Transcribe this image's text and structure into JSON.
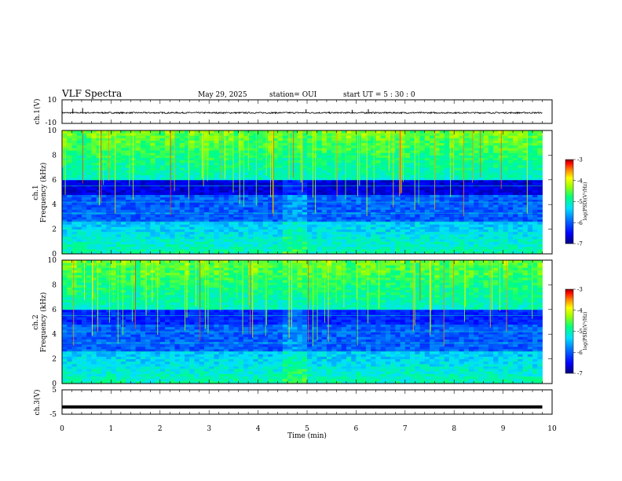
{
  "header": {
    "title": "VLF Spectra",
    "date": "May 29, 2025",
    "station": "station= OUI",
    "start": "start  UT =   5  : 30 : 0"
  },
  "chart_data": [
    {
      "type": "line",
      "panel": "ch1-waveform",
      "ylabel": "ch.1(V)",
      "ylim": [
        -10,
        10
      ],
      "yticks": [
        "10",
        "-10"
      ],
      "xlim": [
        0,
        10
      ],
      "baseline": -1,
      "noise_amplitude": 0.6,
      "spikes": [
        {
          "t": 0.22,
          "v": 2.5
        },
        {
          "t": 0.42,
          "v": 3.0
        },
        {
          "t": 4.98,
          "v": 2.0
        },
        {
          "t": 5.92,
          "v": 1.5
        },
        {
          "t": 6.25,
          "v": 2.0
        }
      ]
    },
    {
      "type": "heatmap",
      "panel": "ch1-spectrogram",
      "ylabel": "ch.1",
      "ylabel2": "Frequency (kHz)",
      "ylim": [
        0,
        10
      ],
      "yticks": [
        "0",
        "2",
        "4",
        "6",
        "8",
        "10"
      ],
      "xlim": [
        0,
        10
      ],
      "data_end_min": 9.8,
      "colorbar": {
        "label": "log(PSD)(V²/Hz)",
        "range": [
          -7,
          -3
        ],
        "ticks": [
          "-3",
          "-4",
          "-5",
          "-6",
          "-7"
        ]
      }
    },
    {
      "type": "heatmap",
      "panel": "ch2-spectrogram",
      "ylabel": "ch.2",
      "ylabel2": "Frequency (kHz)",
      "ylim": [
        0,
        10
      ],
      "yticks": [
        "0",
        "2",
        "4",
        "6",
        "8",
        "10"
      ],
      "xlim": [
        0,
        10
      ],
      "data_end_min": 9.8,
      "colorbar": {
        "label": "log(PSD)(V²/Hz)",
        "range": [
          -7,
          -3
        ],
        "ticks": [
          "-3",
          "-4",
          "-5",
          "-6",
          "-7"
        ]
      }
    },
    {
      "type": "line",
      "panel": "ch3-waveform",
      "ylabel": "ch.3(V)",
      "ylim": [
        -5,
        5
      ],
      "yticks": [
        "5",
        "0",
        "-5"
      ],
      "xlim": [
        0,
        10
      ],
      "baseline": -2,
      "xlabel": "Time (min)",
      "xticks": [
        "0",
        "1",
        "2",
        "3",
        "4",
        "5",
        "6",
        "7",
        "8",
        "9",
        "10"
      ]
    }
  ],
  "colors": {
    "colormap": [
      "#00007f",
      "#0000ff",
      "#0066ff",
      "#00ccff",
      "#00ff88",
      "#88ff00",
      "#ffff00",
      "#ff8800",
      "#ff0000",
      "#8b0000"
    ]
  }
}
